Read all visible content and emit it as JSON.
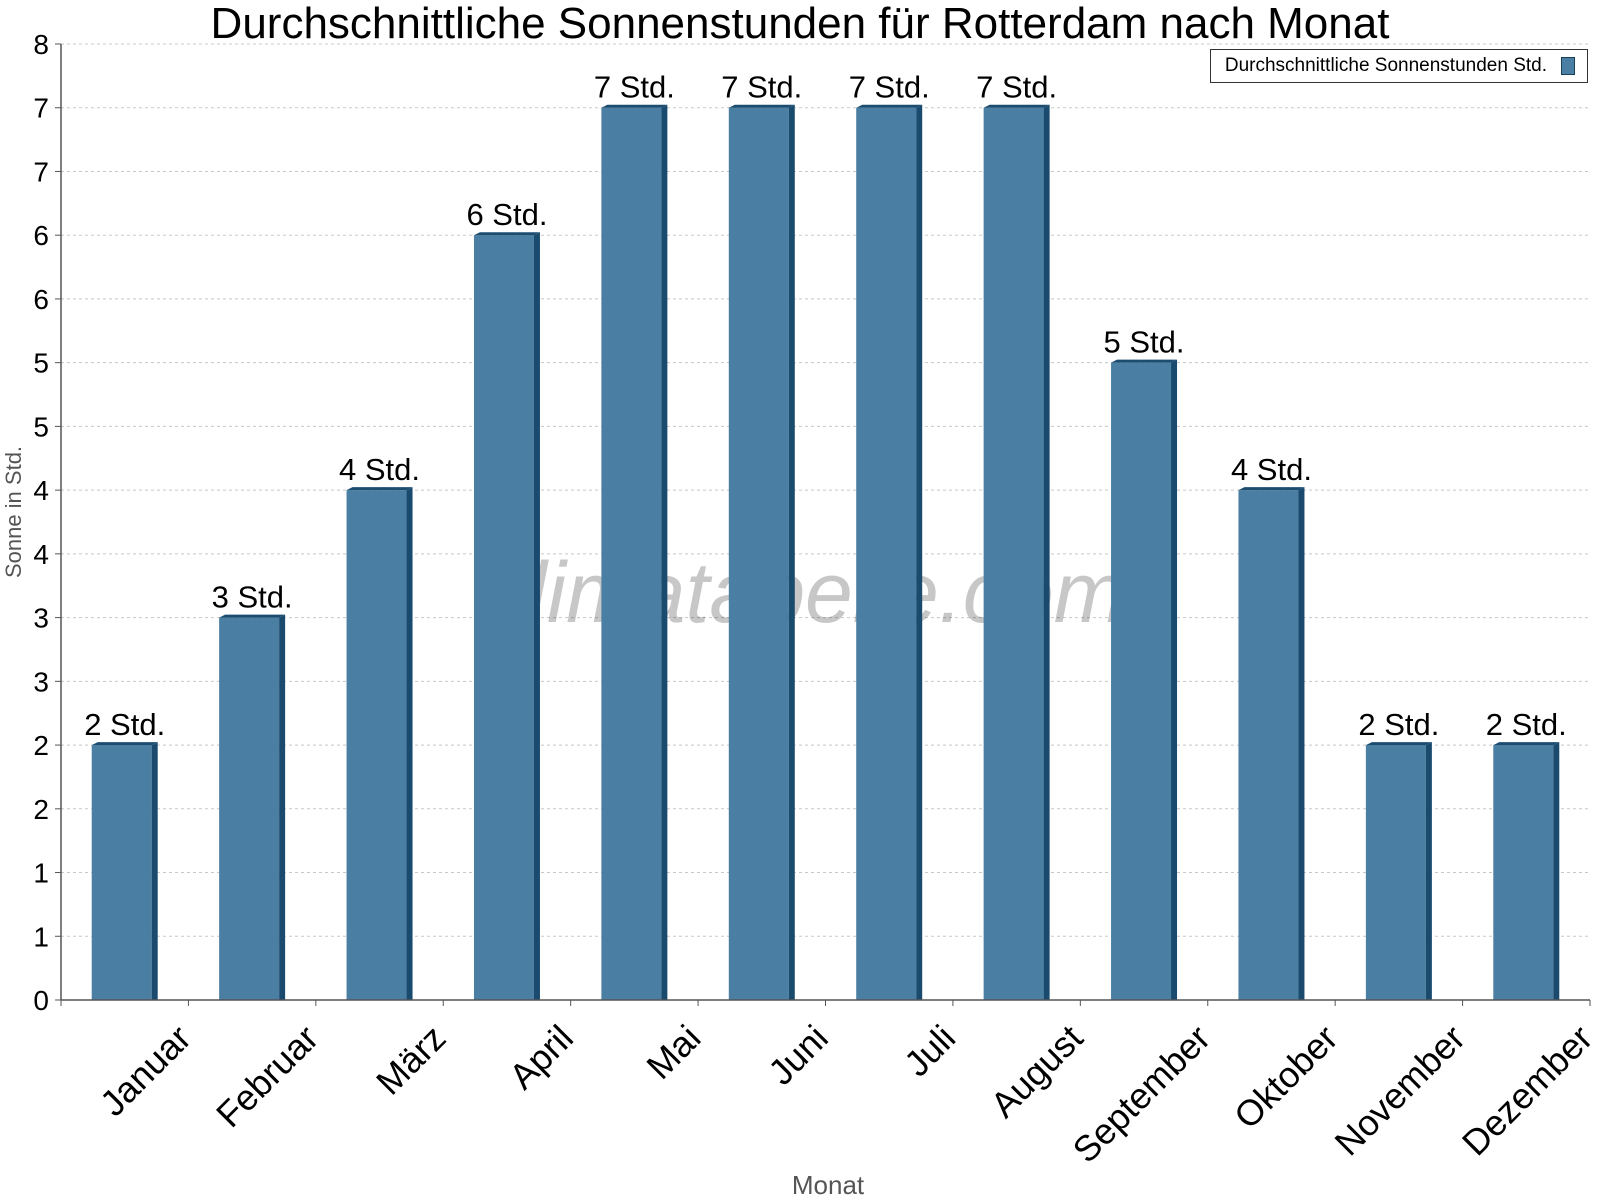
{
  "chart_data": {
    "type": "bar",
    "title": "Durchschnittliche Sonnenstunden für Rotterdam nach Monat",
    "xlabel": "Monat",
    "ylabel": "Sonne in Std.",
    "categories": [
      "Januar",
      "Februar",
      "März",
      "April",
      "Mai",
      "Juni",
      "Juli",
      "August",
      "September",
      "Oktober",
      "November",
      "Dezember"
    ],
    "series": [
      {
        "name": "Durchschnittliche Sonnenstunden Std.",
        "values": [
          2,
          3,
          4,
          6,
          7,
          7,
          7,
          7,
          5,
          4,
          2,
          2
        ],
        "labels": [
          "2 Std.",
          "3 Std.",
          "4 Std.",
          "6 Std.",
          "7 Std.",
          "7 Std.",
          "7 Std.",
          "7 Std.",
          "5 Std.",
          "4 Std.",
          "2 Std.",
          "2 Std."
        ]
      }
    ],
    "ylim": [
      0,
      7.5
    ],
    "y_tick_labels": [
      "0",
      "1",
      "1",
      "2",
      "2",
      "3",
      "3",
      "4",
      "4",
      "5",
      "5",
      "6",
      "6",
      "7",
      "7",
      "8"
    ],
    "grid": true,
    "legend_position": "top-right",
    "watermark": "klimatabelle.com",
    "colors": {
      "bar": "#4a7fa3",
      "bar_side": "#1a4a6e",
      "bar_top": "#1c4d70",
      "grid": "#c8c8c8",
      "axis": "#555555"
    }
  }
}
